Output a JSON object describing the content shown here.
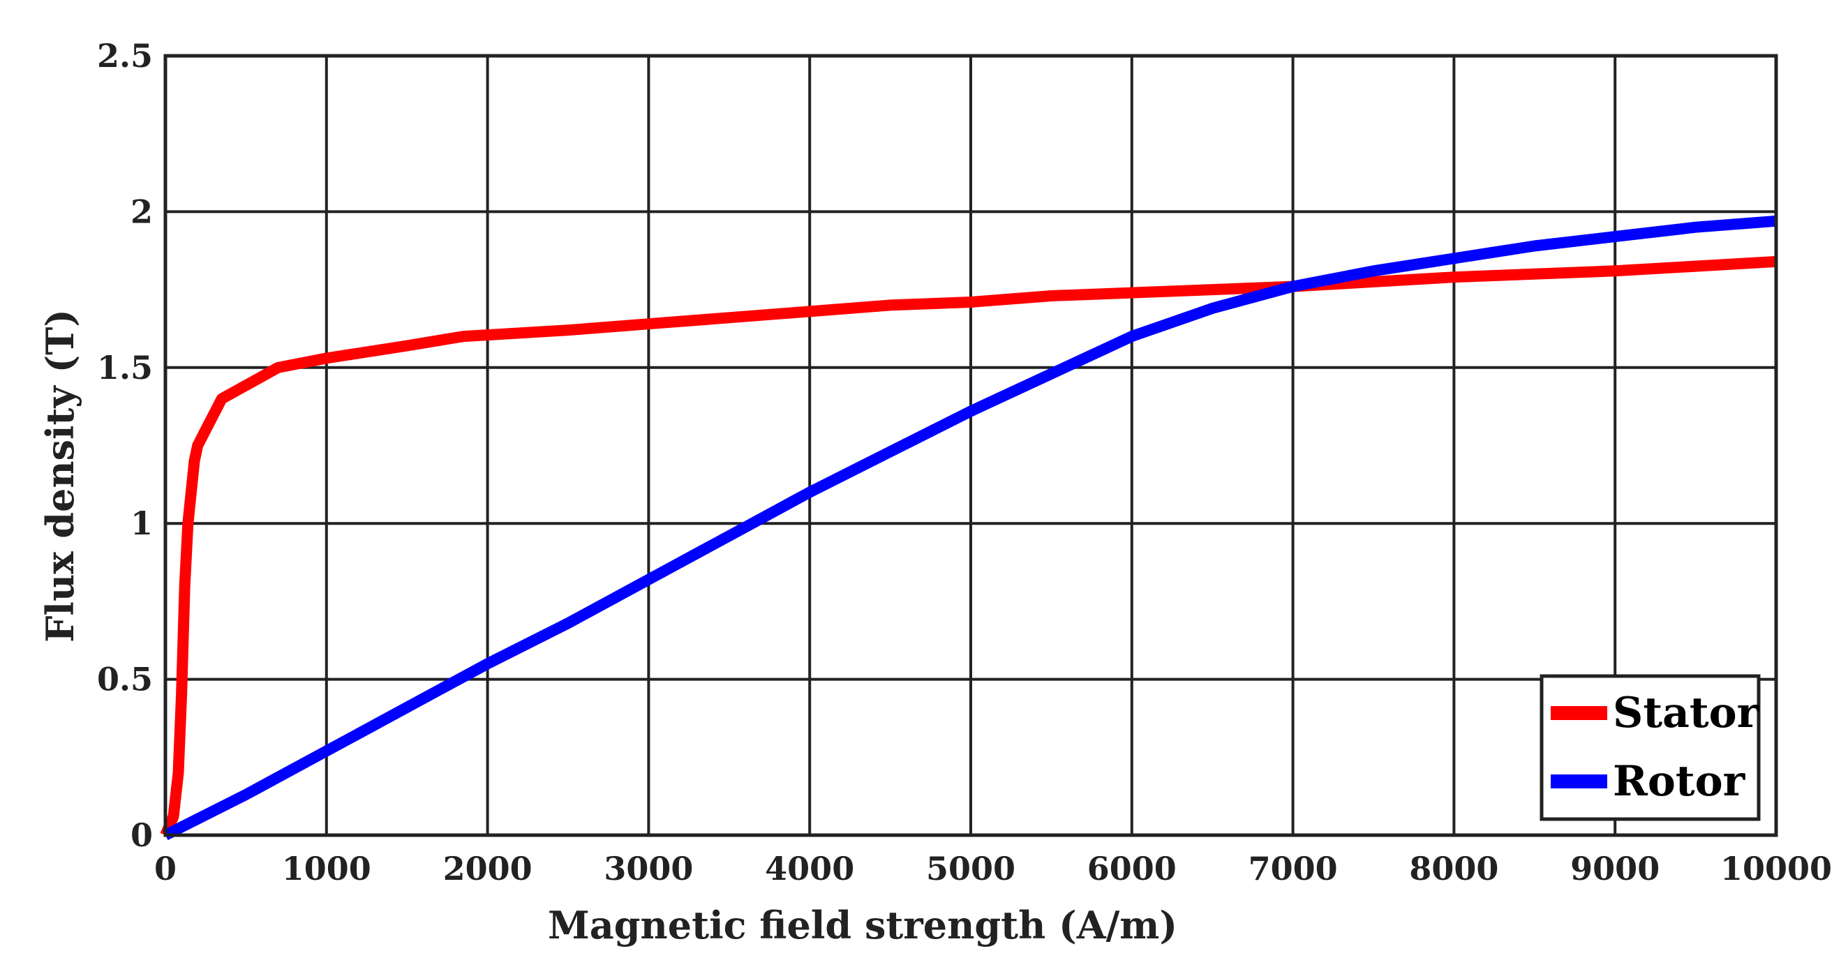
{
  "chart_data": {
    "type": "line",
    "title": "",
    "xlabel": "Magnetic field strength (A/m)",
    "ylabel": "Flux density (T)",
    "xlim": [
      0,
      10000
    ],
    "ylim": [
      0,
      2.5
    ],
    "xticks": [
      0,
      1000,
      2000,
      3000,
      4000,
      5000,
      6000,
      7000,
      8000,
      9000,
      10000
    ],
    "yticks": [
      0,
      0.5,
      1,
      1.5,
      2,
      2.5
    ],
    "xtick_labels": [
      "0",
      "1000",
      "2000",
      "3000",
      "4000",
      "5000",
      "6000",
      "7000",
      "8000",
      "9000",
      "10000"
    ],
    "ytick_labels": [
      "0",
      "0.5",
      "1",
      "1.5",
      "2",
      "2.5"
    ],
    "grid": true,
    "legend_position": "bottom-right",
    "series": [
      {
        "name": "Stator",
        "color": "#ff0000",
        "x": [
          0,
          50,
          80,
          100,
          120,
          140,
          160,
          180,
          200,
          250,
          350,
          700,
          1000,
          1500,
          1850,
          2500,
          3000,
          4000,
          4500,
          5000,
          5500,
          6000,
          7000,
          8000,
          9000,
          10000
        ],
        "y": [
          0,
          0.06,
          0.2,
          0.45,
          0.8,
          1.0,
          1.1,
          1.2,
          1.25,
          1.3,
          1.4,
          1.5,
          1.53,
          1.57,
          1.6,
          1.62,
          1.64,
          1.68,
          1.7,
          1.71,
          1.73,
          1.74,
          1.76,
          1.79,
          1.81,
          1.84
        ]
      },
      {
        "name": "Rotor",
        "color": "#0000ff",
        "x": [
          0,
          500,
          1000,
          1500,
          2000,
          2500,
          3000,
          3500,
          4000,
          4500,
          5000,
          5500,
          6000,
          6500,
          7000,
          7500,
          8000,
          8500,
          9000,
          9500,
          10000
        ],
        "y": [
          0,
          0.13,
          0.27,
          0.41,
          0.55,
          0.68,
          0.82,
          0.96,
          1.1,
          1.23,
          1.36,
          1.48,
          1.6,
          1.69,
          1.76,
          1.81,
          1.85,
          1.89,
          1.92,
          1.95,
          1.97
        ]
      }
    ]
  }
}
